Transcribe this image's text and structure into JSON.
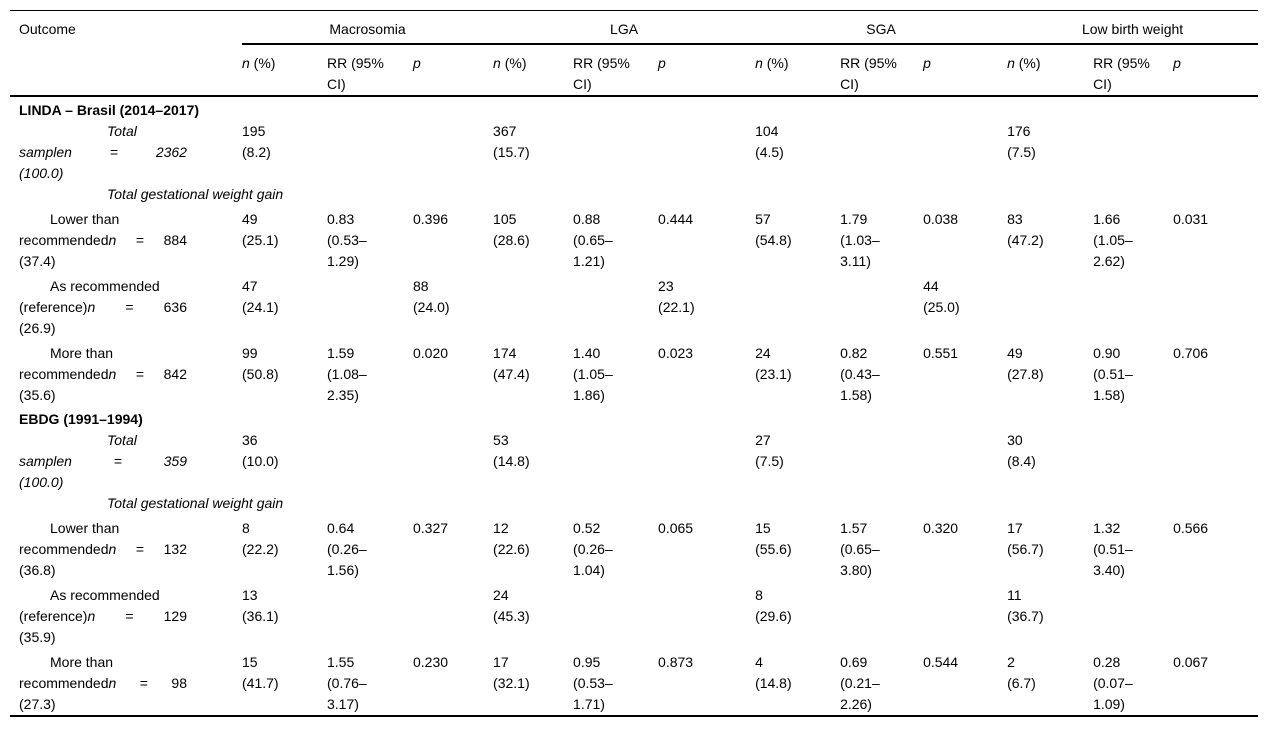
{
  "table": {
    "outcome_header": "Outcome",
    "groups": [
      {
        "label": "Macrosomia"
      },
      {
        "label": "LGA"
      },
      {
        "label": "SGA"
      },
      {
        "label": "Low birth weight"
      }
    ],
    "subheaders": {
      "n_italic": "n",
      "n_rest": " (%)",
      "rr_line1": "RR (95%",
      "rr_line2": "CI)",
      "p": "p"
    },
    "rows": [
      {
        "type": "section",
        "label": "LINDA – Brasil (2014–2017)"
      },
      {
        "type": "total",
        "label": {
          "line1": "Total",
          "word": "samplen",
          "eq": "=",
          "num": "2362",
          "line3": "(100.0)"
        },
        "cells": [
          {
            "col": 1,
            "lines": [
              "195",
              "(8.2)"
            ]
          },
          {
            "col": 4,
            "lines": [
              "367",
              "(15.7)"
            ]
          },
          {
            "col": 7,
            "lines": [
              "104",
              "(4.5)"
            ]
          },
          {
            "col": 10,
            "lines": [
              "176",
              "(7.5)"
            ]
          }
        ]
      },
      {
        "type": "subhead",
        "label": "Total gestational weight gain"
      },
      {
        "type": "cat",
        "label": {
          "line1": "Lower than",
          "word": "recommended",
          "nvar": "n",
          "eq": "=",
          "num": "884",
          "line3": "(37.4)"
        },
        "cells": [
          {
            "col": 1,
            "lines": [
              "49",
              "(25.1)"
            ]
          },
          {
            "col": 2,
            "lines": [
              "0.83",
              "(0.53–",
              "1.29)"
            ]
          },
          {
            "col": 3,
            "lines": [
              "0.396"
            ]
          },
          {
            "col": 4,
            "lines": [
              "105",
              "(28.6)"
            ]
          },
          {
            "col": 5,
            "lines": [
              "0.88",
              "(0.65–",
              "1.21)"
            ]
          },
          {
            "col": 6,
            "lines": [
              "0.444"
            ]
          },
          {
            "col": 7,
            "lines": [
              "57",
              "(54.8)"
            ]
          },
          {
            "col": 8,
            "lines": [
              "1.79",
              "(1.03–",
              "3.11)"
            ]
          },
          {
            "col": 9,
            "lines": [
              "0.038"
            ]
          },
          {
            "col": 10,
            "lines": [
              "83",
              "(47.2)"
            ]
          },
          {
            "col": 11,
            "lines": [
              "1.66",
              "(1.05–",
              "2.62)"
            ]
          },
          {
            "col": 12,
            "lines": [
              "0.031"
            ]
          }
        ]
      },
      {
        "type": "cat",
        "label": {
          "line1": "As recommended",
          "word": "(reference)",
          "nvar": "n",
          "eq": "=",
          "num": "636",
          "line3": "(26.9)"
        },
        "cells": [
          {
            "col": 1,
            "lines": [
              "47",
              "(24.1)"
            ]
          },
          {
            "col": 3,
            "lines": [
              "88",
              "(24.0)"
            ]
          },
          {
            "col": 6,
            "lines": [
              "23",
              "(22.1)"
            ]
          },
          {
            "col": 9,
            "lines": [
              "44",
              "(25.0)"
            ]
          }
        ]
      },
      {
        "type": "cat",
        "label": {
          "line1": "More than",
          "word": "recommended",
          "nvar": "n",
          "eq": "=",
          "num": "842",
          "line3": "(35.6)"
        },
        "cells": [
          {
            "col": 1,
            "lines": [
              "99",
              "(50.8)"
            ]
          },
          {
            "col": 2,
            "lines": [
              "1.59",
              "(1.08–",
              "2.35)"
            ]
          },
          {
            "col": 3,
            "lines": [
              "0.020"
            ]
          },
          {
            "col": 4,
            "lines": [
              "174",
              "(47.4)"
            ]
          },
          {
            "col": 5,
            "lines": [
              "1.40",
              "(1.05–",
              "1.86)"
            ]
          },
          {
            "col": 6,
            "lines": [
              "0.023"
            ]
          },
          {
            "col": 7,
            "lines": [
              "24",
              "(23.1)"
            ]
          },
          {
            "col": 8,
            "lines": [
              "0.82",
              "(0.43–",
              "1.58)"
            ]
          },
          {
            "col": 9,
            "lines": [
              "0.551"
            ]
          },
          {
            "col": 10,
            "lines": [
              "49",
              "(27.8)"
            ]
          },
          {
            "col": 11,
            "lines": [
              "0.90",
              "(0.51–",
              "1.58)"
            ]
          },
          {
            "col": 12,
            "lines": [
              "0.706"
            ]
          }
        ]
      },
      {
        "type": "section",
        "label": "EBDG (1991–1994)"
      },
      {
        "type": "total",
        "label": {
          "line1": "Total",
          "word": "samplen",
          "eq": "=",
          "num": "359",
          "line3": "(100.0)"
        },
        "cells": [
          {
            "col": 1,
            "lines": [
              "36",
              "(10.0)"
            ]
          },
          {
            "col": 4,
            "lines": [
              "53",
              "(14.8)"
            ]
          },
          {
            "col": 7,
            "lines": [
              "27",
              "(7.5)"
            ]
          },
          {
            "col": 10,
            "lines": [
              "30",
              "(8.4)"
            ]
          }
        ]
      },
      {
        "type": "subhead",
        "label": "Total gestational weight gain"
      },
      {
        "type": "cat",
        "label": {
          "line1": "Lower than",
          "word": "recommended",
          "nvar": "n",
          "eq": "=",
          "num": "132",
          "line3": "(36.8)"
        },
        "cells": [
          {
            "col": 1,
            "lines": [
              "8",
              "(22.2)"
            ]
          },
          {
            "col": 2,
            "lines": [
              "0.64",
              "(0.26–",
              "1.56)"
            ]
          },
          {
            "col": 3,
            "lines": [
              "0.327"
            ]
          },
          {
            "col": 4,
            "lines": [
              "12",
              "(22.6)"
            ]
          },
          {
            "col": 5,
            "lines": [
              "0.52",
              "(0.26–",
              "1.04)"
            ]
          },
          {
            "col": 6,
            "lines": [
              "0.065"
            ]
          },
          {
            "col": 7,
            "lines": [
              "15",
              "(55.6)"
            ]
          },
          {
            "col": 8,
            "lines": [
              "1.57",
              "(0.65–",
              "3.80)"
            ]
          },
          {
            "col": 9,
            "lines": [
              "0.320"
            ]
          },
          {
            "col": 10,
            "lines": [
              "17",
              "(56.7)"
            ]
          },
          {
            "col": 11,
            "lines": [
              "1.32",
              "(0.51–",
              "3.40)"
            ]
          },
          {
            "col": 12,
            "lines": [
              "0.566"
            ]
          }
        ]
      },
      {
        "type": "cat",
        "label": {
          "line1": "As recommended",
          "word": "(reference)",
          "nvar": "n",
          "eq": "=",
          "num": "129",
          "line3": "(35.9)"
        },
        "cells": [
          {
            "col": 1,
            "lines": [
              "13",
              "(36.1)"
            ]
          },
          {
            "col": 4,
            "lines": [
              "24",
              "(45.3)"
            ]
          },
          {
            "col": 7,
            "lines": [
              "8",
              "(29.6)"
            ]
          },
          {
            "col": 10,
            "lines": [
              "11",
              "(36.7)"
            ]
          }
        ]
      },
      {
        "type": "cat",
        "label": {
          "line1": "More than",
          "word": "recommended",
          "nvar": "n",
          "eq": "=",
          "num": "98",
          "line3": "(27.3)"
        },
        "cells": [
          {
            "col": 1,
            "lines": [
              "15",
              "(41.7)"
            ]
          },
          {
            "col": 2,
            "lines": [
              "1.55",
              "(0.76–",
              "3.17)"
            ]
          },
          {
            "col": 3,
            "lines": [
              "0.230"
            ]
          },
          {
            "col": 4,
            "lines": [
              "17",
              "(32.1)"
            ]
          },
          {
            "col": 5,
            "lines": [
              "0.95",
              "(0.53–",
              "1.71)"
            ]
          },
          {
            "col": 6,
            "lines": [
              "0.873"
            ]
          },
          {
            "col": 7,
            "lines": [
              "4",
              "(14.8)"
            ]
          },
          {
            "col": 8,
            "lines": [
              "0.69",
              "(0.21–",
              "2.26)"
            ]
          },
          {
            "col": 9,
            "lines": [
              "0.544"
            ]
          },
          {
            "col": 10,
            "lines": [
              "2",
              "(6.7)"
            ]
          },
          {
            "col": 11,
            "lines": [
              "0.28",
              "(0.07–",
              "1.09)"
            ]
          },
          {
            "col": 12,
            "lines": [
              "0.067"
            ]
          }
        ]
      }
    ]
  }
}
